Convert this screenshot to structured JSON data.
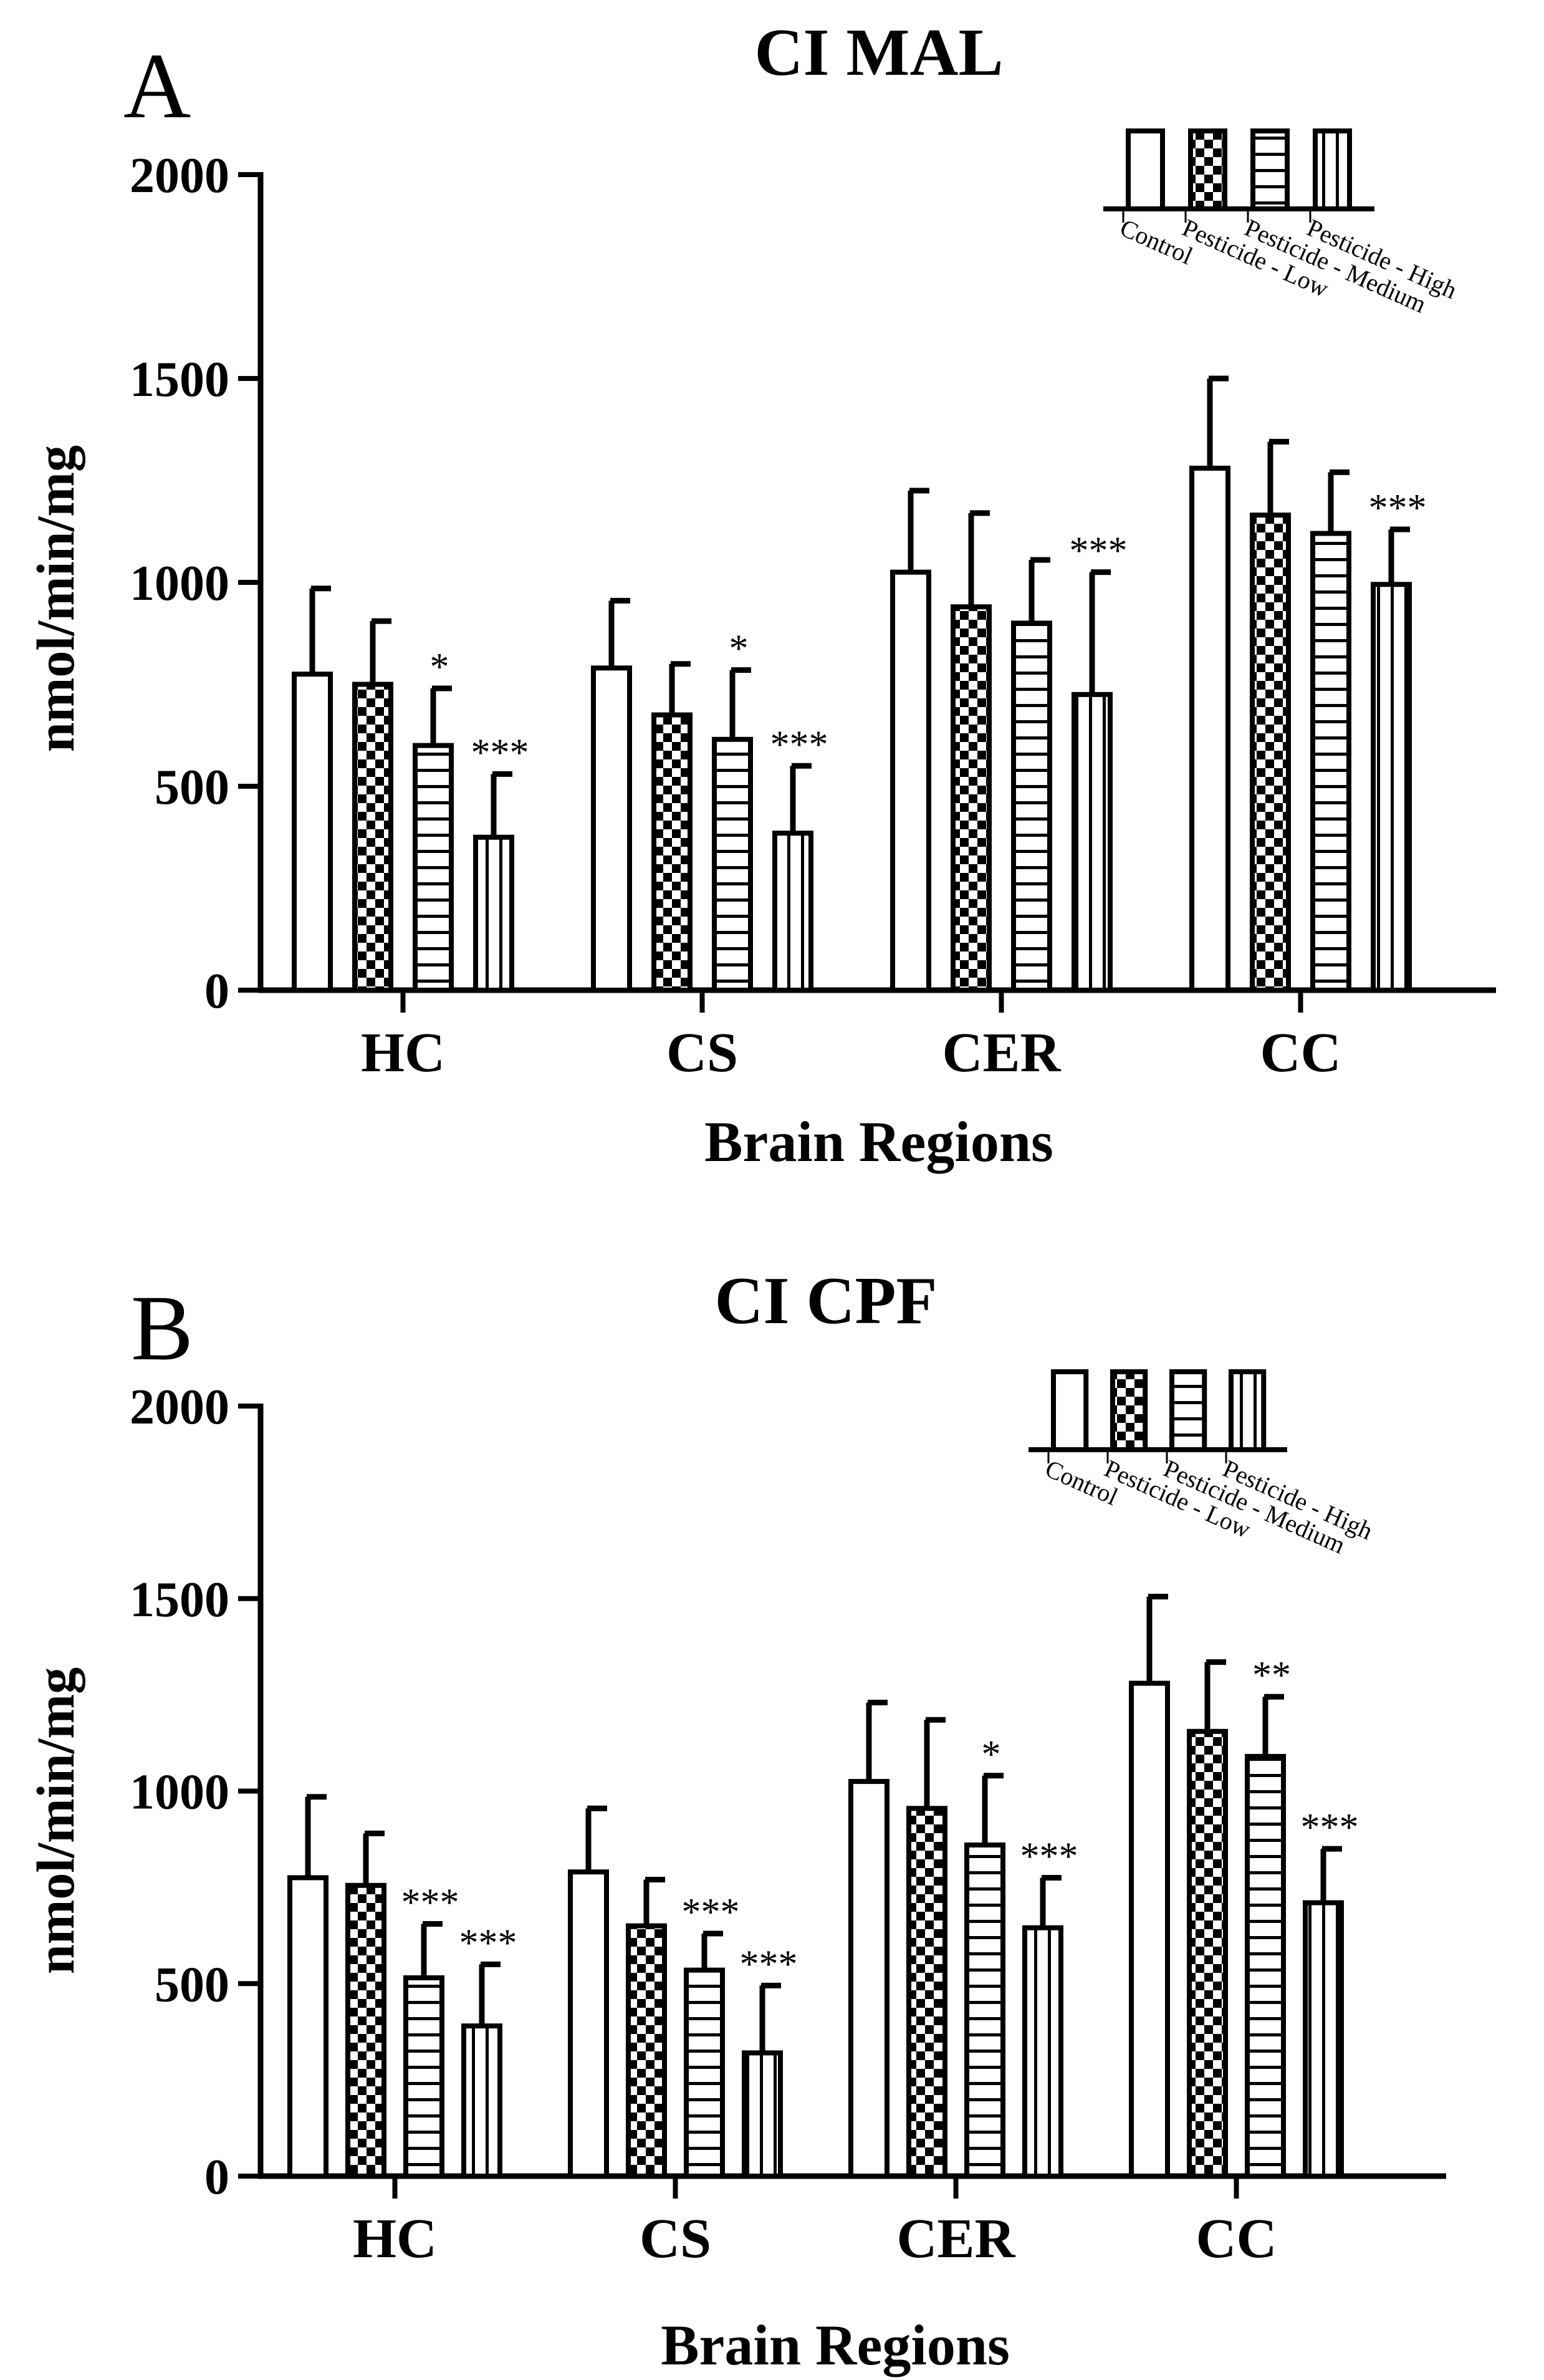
{
  "chart_data": [
    {
      "type": "bar",
      "panel": "A",
      "title": "CI MAL",
      "xlabel": "Brain Regions",
      "ylabel": "nmol/min/mg",
      "ylim": [
        0,
        2000
      ],
      "yticks": [
        "0",
        "500",
        "1000",
        "1500",
        "2000"
      ],
      "categories": [
        "HC",
        "CS",
        "CER",
        "CC"
      ],
      "legend_position": "top-right",
      "series": [
        {
          "name": "Control",
          "pattern": "open",
          "values": [
            775,
            790,
            1025,
            1280
          ],
          "errors": [
            210,
            165,
            200,
            220
          ],
          "significance": [
            "",
            "",
            "",
            ""
          ]
        },
        {
          "name": "Pesticide - Low",
          "pattern": "checkered",
          "values": [
            750,
            675,
            940,
            1165
          ],
          "errors": [
            155,
            125,
            230,
            180
          ],
          "significance": [
            "",
            "",
            "",
            ""
          ]
        },
        {
          "name": "Pesticide - Medium",
          "pattern": "horizontal-lines",
          "values": [
            600,
            615,
            900,
            1120
          ],
          "errors": [
            140,
            170,
            155,
            150
          ],
          "significance": [
            "*",
            "*",
            "",
            ""
          ]
        },
        {
          "name": "Pesticide - High",
          "pattern": "vertical-lines",
          "values": [
            375,
            385,
            725,
            995
          ],
          "errors": [
            155,
            165,
            300,
            135
          ],
          "significance": [
            "***",
            "***",
            "***",
            "***"
          ]
        }
      ]
    },
    {
      "type": "bar",
      "panel": "B",
      "title": "CI CPF",
      "xlabel": "Brain Regions",
      "ylabel": "nmol/min/mg",
      "ylim": [
        0,
        2000
      ],
      "yticks": [
        "0",
        "500",
        "1000",
        "1500",
        "2000"
      ],
      "categories": [
        "HC",
        "CS",
        "CER",
        "CC"
      ],
      "legend_position": "top-right",
      "series": [
        {
          "name": "Control",
          "pattern": "open",
          "values": [
            775,
            790,
            1025,
            1280
          ],
          "errors": [
            210,
            165,
            205,
            225
          ],
          "significance": [
            "",
            "",
            "",
            ""
          ]
        },
        {
          "name": "Pesticide - Low",
          "pattern": "checkered",
          "values": [
            755,
            650,
            955,
            1155
          ],
          "errors": [
            135,
            120,
            230,
            180
          ],
          "significance": [
            "",
            "",
            "",
            ""
          ]
        },
        {
          "name": "Pesticide - Medium",
          "pattern": "horizontal-lines",
          "values": [
            515,
            535,
            860,
            1090
          ],
          "errors": [
            140,
            95,
            180,
            155
          ],
          "significance": [
            "***",
            "***",
            "*",
            "**"
          ]
        },
        {
          "name": "Pesticide - High",
          "pattern": "vertical-lines",
          "values": [
            390,
            320,
            645,
            710
          ],
          "errors": [
            160,
            175,
            130,
            140
          ],
          "significance": [
            "***",
            "***",
            "***",
            "***"
          ]
        }
      ]
    }
  ]
}
